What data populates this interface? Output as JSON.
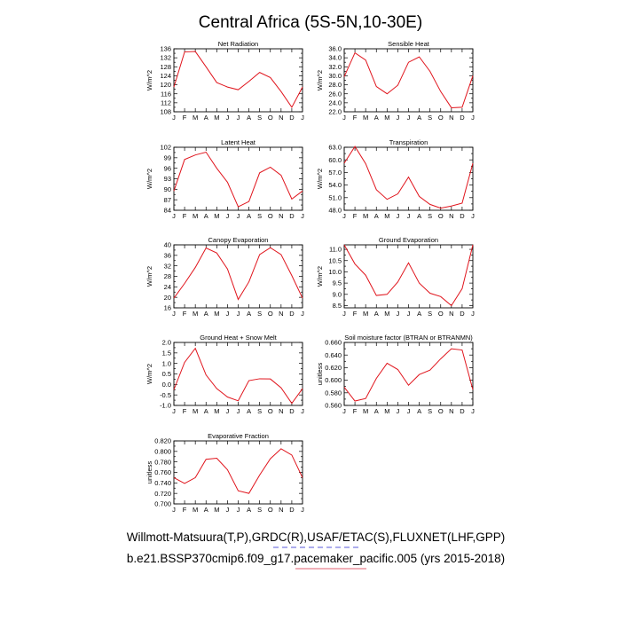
{
  "title": "Central Africa (5S-5N,10-30E)",
  "footer": {
    "line1": "Willmott-Matsuura(T,P),GRDC(R),USAF/ETAC(S),FLUXNET(LHF,GPP)",
    "line2": "b.e21.BSSP370cmip6.f09_g17.pacemaker_pacific.005 (yrs 2015-2018)"
  },
  "chart_data": [
    {
      "type": "line",
      "title": "Net Radiation",
      "ylabel": "W/m^2",
      "x": [
        "J",
        "F",
        "M",
        "A",
        "M",
        "J",
        "J",
        "A",
        "S",
        "O",
        "N",
        "D",
        "J"
      ],
      "yticks": [
        "108",
        "112",
        "116",
        "120",
        "124",
        "128",
        "132",
        "136"
      ],
      "ylim": [
        108,
        136
      ],
      "values": [
        119,
        134.6,
        134.8,
        128,
        121,
        119,
        117.8,
        121.5,
        125.5,
        123.2,
        117,
        110,
        119
      ]
    },
    {
      "type": "line",
      "title": "Sensible Heat",
      "ylabel": "W/m^2",
      "x": [
        "J",
        "F",
        "M",
        "A",
        "M",
        "J",
        "J",
        "A",
        "S",
        "O",
        "N",
        "D",
        "J"
      ],
      "yticks": [
        "22.0",
        "24.0",
        "26.0",
        "28.0",
        "30.0",
        "32.0",
        "34.0",
        "36.0"
      ],
      "ylim": [
        22,
        36
      ],
      "values": [
        29.8,
        35.1,
        33.5,
        27.6,
        26.0,
        27.9,
        33.0,
        34.2,
        31.0,
        26.5,
        22.9,
        23.0,
        30.0
      ]
    },
    {
      "type": "line",
      "title": "Latent Heat",
      "ylabel": "W/m^2",
      "x": [
        "J",
        "F",
        "M",
        "A",
        "M",
        "J",
        "J",
        "A",
        "S",
        "O",
        "N",
        "D",
        "J"
      ],
      "yticks": [
        "84",
        "87",
        "90",
        "93",
        "96",
        "99",
        "102"
      ],
      "ylim": [
        84,
        102
      ],
      "values": [
        89.5,
        98.5,
        99.8,
        100.6,
        96,
        92,
        85,
        86.5,
        94.7,
        96.3,
        94,
        87.2,
        89.5
      ]
    },
    {
      "type": "line",
      "title": "Transpiration",
      "ylabel": "W/m^2",
      "x": [
        "J",
        "F",
        "M",
        "A",
        "M",
        "J",
        "J",
        "A",
        "S",
        "O",
        "N",
        "D",
        "J"
      ],
      "yticks": [
        "48.0",
        "51.0",
        "54.0",
        "57.0",
        "60.0",
        "63.0"
      ],
      "ylim": [
        48,
        63
      ],
      "values": [
        59.2,
        63.2,
        59.1,
        52.9,
        50.6,
        51.9,
        55.9,
        51.3,
        49.4,
        48.5,
        49.0,
        49.7,
        59.2
      ]
    },
    {
      "type": "line",
      "title": "Canopy Evaporation",
      "ylabel": "W/m^2",
      "x": [
        "J",
        "F",
        "M",
        "A",
        "M",
        "J",
        "J",
        "A",
        "S",
        "O",
        "N",
        "D",
        "J"
      ],
      "yticks": [
        "16",
        "20",
        "24",
        "28",
        "32",
        "36",
        "40"
      ],
      "ylim": [
        16,
        40
      ],
      "values": [
        19.7,
        25.3,
        31.4,
        38.8,
        36.9,
        30.8,
        19.2,
        25.9,
        36.3,
        38.9,
        36.3,
        28.3,
        19.7
      ]
    },
    {
      "type": "line",
      "title": "Ground Evaporation",
      "ylabel": "W/m^2",
      "x": [
        "J",
        "F",
        "M",
        "A",
        "M",
        "J",
        "J",
        "A",
        "S",
        "O",
        "N",
        "D",
        "J"
      ],
      "yticks": [
        "8.5",
        "9.0",
        "9.5",
        "10.0",
        "10.5",
        "11.0"
      ],
      "ylim": [
        8.4,
        11.2
      ],
      "values": [
        11.2,
        10.35,
        9.85,
        8.95,
        9.0,
        9.55,
        10.4,
        9.5,
        9.05,
        8.9,
        8.5,
        9.25,
        11.2
      ]
    },
    {
      "type": "line",
      "title": "Ground Heat + Snow Melt",
      "ylabel": "W/m^2",
      "x": [
        "J",
        "F",
        "M",
        "A",
        "M",
        "J",
        "J",
        "A",
        "S",
        "O",
        "N",
        "D",
        "J"
      ],
      "yticks": [
        "-1.0",
        "-0.5",
        "0.0",
        "0.5",
        "1.0",
        "1.5",
        "2.0"
      ],
      "ylim": [
        -1.0,
        2.0
      ],
      "values": [
        -0.25,
        1.05,
        1.72,
        0.45,
        -0.2,
        -0.6,
        -0.78,
        0.18,
        0.27,
        0.26,
        -0.16,
        -0.9,
        -0.2
      ]
    },
    {
      "type": "line",
      "title": "Soil moisture factor (BTRAN or BTRANMN)",
      "ylabel": "unitless",
      "x": [
        "J",
        "F",
        "M",
        "A",
        "M",
        "J",
        "J",
        "A",
        "S",
        "O",
        "N",
        "D",
        "J"
      ],
      "yticks": [
        "0.560",
        "0.580",
        "0.600",
        "0.620",
        "0.640",
        "0.660"
      ],
      "ylim": [
        0.56,
        0.66
      ],
      "values": [
        0.589,
        0.567,
        0.571,
        0.603,
        0.627,
        0.617,
        0.592,
        0.609,
        0.616,
        0.634,
        0.65,
        0.648,
        0.585
      ]
    },
    {
      "type": "line",
      "title": "Evaporative Fraction",
      "ylabel": "unitless",
      "x": [
        "J",
        "F",
        "M",
        "A",
        "M",
        "J",
        "J",
        "A",
        "S",
        "O",
        "N",
        "D",
        "J"
      ],
      "yticks": [
        "0.700",
        "0.720",
        "0.740",
        "0.760",
        "0.780",
        "0.800",
        "0.820"
      ],
      "ylim": [
        0.7,
        0.82
      ],
      "values": [
        0.75,
        0.739,
        0.75,
        0.785,
        0.787,
        0.765,
        0.725,
        0.72,
        0.755,
        0.786,
        0.805,
        0.793,
        0.75
      ]
    }
  ]
}
